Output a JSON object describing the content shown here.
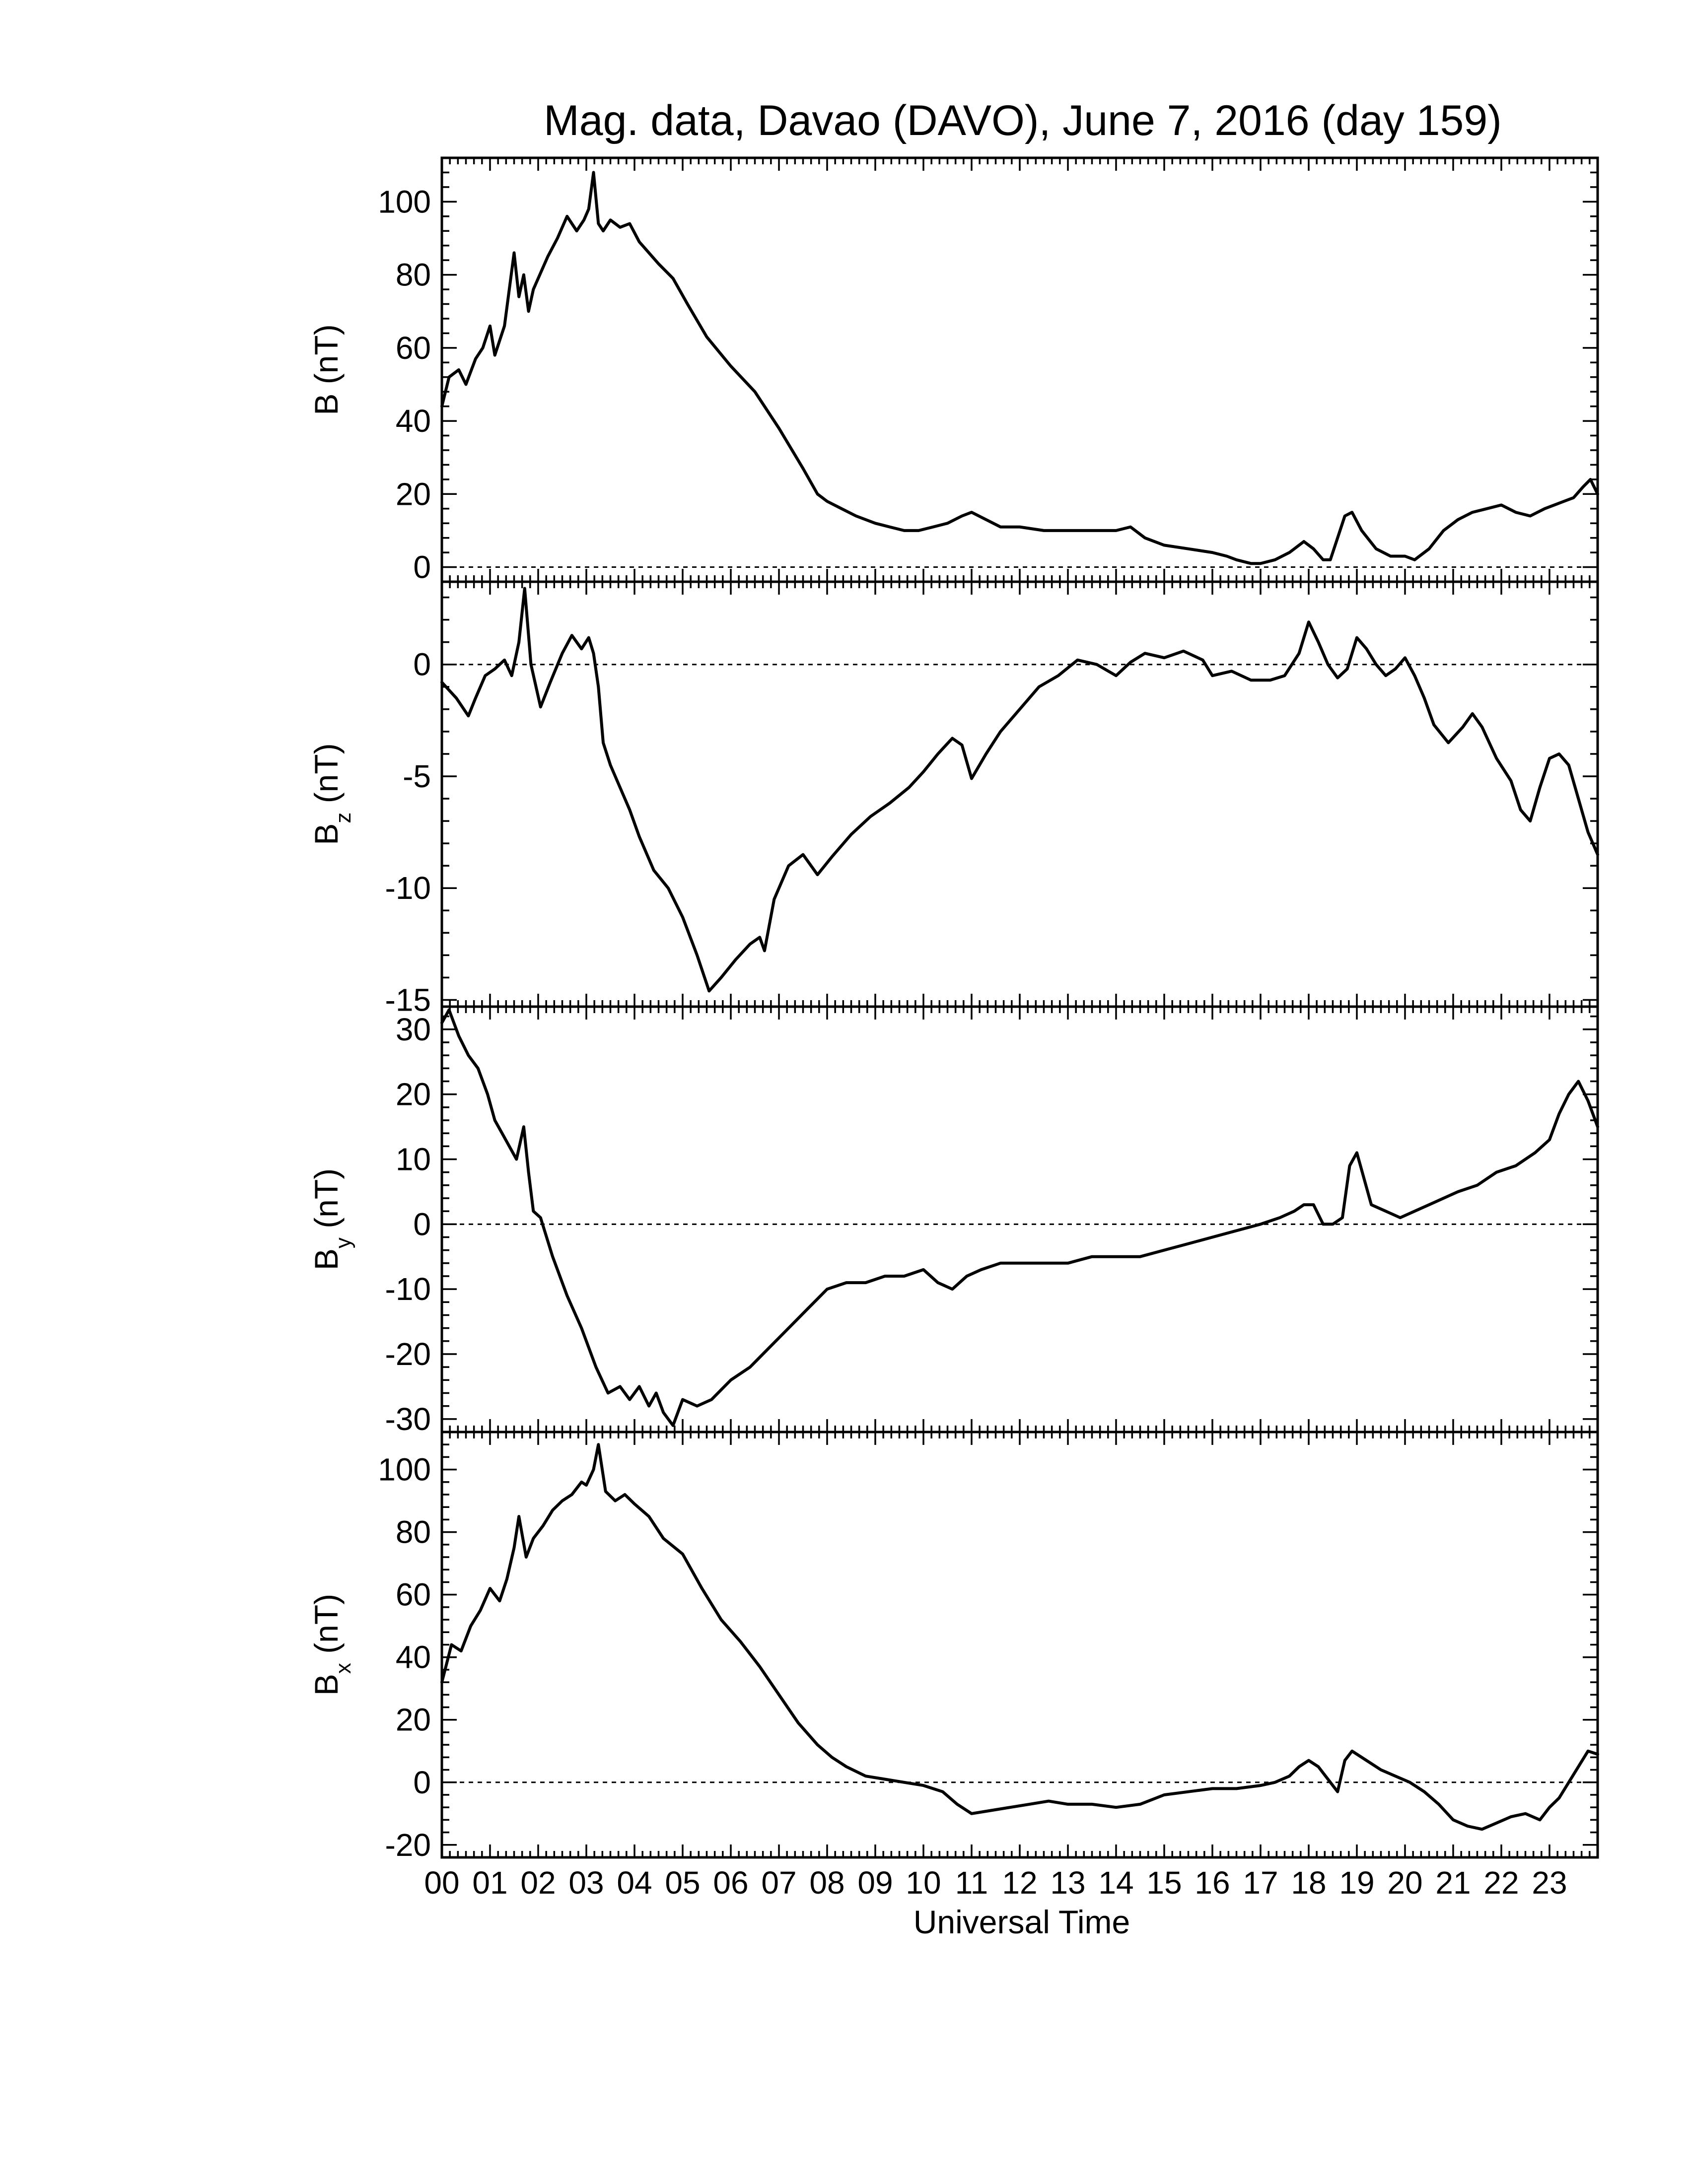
{
  "chart_data": {
    "type": "line",
    "title": "Mag. data, Davao (DAVO), June 7, 2016 (day 159)",
    "xlabel": "Universal Time",
    "x_unit": "hours UT",
    "xlim": [
      0,
      24
    ],
    "x_tick_labels": [
      "00",
      "01",
      "02",
      "03",
      "04",
      "05",
      "06",
      "07",
      "08",
      "09",
      "10",
      "11",
      "12",
      "13",
      "14",
      "15",
      "16",
      "17",
      "18",
      "19",
      "20",
      "21",
      "22",
      "23"
    ],
    "colors": {
      "line": "#000000",
      "frame": "#000000",
      "background": "#ffffff"
    },
    "panels": [
      {
        "id": "b-total",
        "ylabel_main": "B",
        "ylabel_sub": "",
        "ylabel_unit": "(nT)",
        "ylim": [
          -4,
          112
        ],
        "yticks": [
          0,
          20,
          40,
          60,
          80,
          100
        ],
        "ytick_labels": [
          "0",
          "20",
          "40",
          "60",
          "80",
          "100"
        ],
        "zero_line": true,
        "series": [
          {
            "x": [
              0,
              0.15,
              0.35,
              0.5,
              0.7,
              0.85,
              1.0,
              1.1,
              1.2,
              1.3,
              1.4,
              1.5,
              1.6,
              1.7,
              1.8,
              1.9,
              2.0,
              2.2,
              2.4,
              2.6,
              2.8,
              2.95,
              3.05,
              3.15,
              3.25,
              3.35,
              3.5,
              3.7,
              3.9,
              4.1,
              4.3,
              4.5,
              4.8,
              5.1,
              5.5,
              6.0,
              6.5,
              7.0,
              7.5,
              7.8,
              8.0,
              8.3,
              8.6,
              9.0,
              9.3,
              9.6,
              9.9,
              10.2,
              10.5,
              10.8,
              11.0,
              11.3,
              11.6,
              12.0,
              12.5,
              13.0,
              13.5,
              14.0,
              14.3,
              14.6,
              15.0,
              15.5,
              16.0,
              16.3,
              16.5,
              16.8,
              17.0,
              17.3,
              17.6,
              17.9,
              18.1,
              18.3,
              18.45,
              18.6,
              18.75,
              18.9,
              19.1,
              19.4,
              19.7,
              20.0,
              20.2,
              20.5,
              20.8,
              21.1,
              21.4,
              21.7,
              22.0,
              22.3,
              22.6,
              22.9,
              23.1,
              23.3,
              23.5,
              23.7,
              23.85,
              24.0
            ],
            "y": [
              44,
              52,
              54,
              50,
              57,
              60,
              66,
              58,
              62,
              66,
              76,
              86,
              74,
              80,
              70,
              76,
              79,
              85,
              90,
              96,
              92,
              95,
              98,
              108,
              94,
              92,
              95,
              93,
              94,
              89,
              86,
              83,
              79,
              72,
              63,
              55,
              48,
              38,
              27,
              20,
              18,
              16,
              14,
              12,
              11,
              10,
              10,
              11,
              12,
              14,
              15,
              13,
              11,
              11,
              10,
              10,
              10,
              10,
              11,
              8,
              6,
              5,
              4,
              3,
              2,
              1,
              1,
              2,
              4,
              7,
              5,
              2,
              2,
              8,
              14,
              15,
              10,
              5,
              3,
              3,
              2,
              5,
              10,
              13,
              15,
              16,
              17,
              15,
              14,
              16,
              17,
              18,
              19,
              22,
              24,
              20
            ]
          }
        ]
      },
      {
        "id": "bz",
        "ylabel_main": "B",
        "ylabel_sub": "z",
        "ylabel_unit": "(nT)",
        "ylim": [
          -15.3,
          3.7
        ],
        "yticks": [
          0,
          -5,
          -10,
          -15
        ],
        "ytick_labels": [
          "0",
          "-5",
          "-10",
          "-15"
        ],
        "zero_line": true,
        "series": [
          {
            "x": [
              0,
              0.3,
              0.55,
              0.7,
              0.9,
              1.1,
              1.3,
              1.45,
              1.6,
              1.72,
              1.85,
              2.05,
              2.25,
              2.5,
              2.7,
              2.9,
              3.05,
              3.15,
              3.25,
              3.35,
              3.5,
              3.7,
              3.9,
              4.1,
              4.4,
              4.7,
              5.0,
              5.3,
              5.55,
              5.8,
              6.1,
              6.4,
              6.6,
              6.7,
              6.9,
              7.2,
              7.5,
              7.8,
              8.1,
              8.5,
              8.9,
              9.3,
              9.7,
              10.0,
              10.3,
              10.6,
              10.8,
              11.0,
              11.3,
              11.6,
              12.0,
              12.4,
              12.8,
              13.2,
              13.6,
              14.0,
              14.3,
              14.6,
              15.0,
              15.4,
              15.8,
              16.0,
              16.4,
              16.8,
              17.2,
              17.5,
              17.8,
              18.0,
              18.2,
              18.4,
              18.6,
              18.8,
              19.0,
              19.2,
              19.4,
              19.6,
              19.8,
              20.0,
              20.2,
              20.4,
              20.6,
              20.9,
              21.2,
              21.4,
              21.6,
              21.9,
              22.2,
              22.4,
              22.6,
              22.8,
              23.0,
              23.2,
              23.4,
              23.6,
              23.8,
              24.0
            ],
            "y": [
              -0.8,
              -1.5,
              -2.3,
              -1.5,
              -0.5,
              -0.2,
              0.2,
              -0.5,
              1.0,
              3.4,
              0.0,
              -1.9,
              -0.8,
              0.5,
              1.3,
              0.7,
              1.2,
              0.5,
              -1.0,
              -3.5,
              -4.5,
              -5.5,
              -6.5,
              -7.7,
              -9.2,
              -10.0,
              -11.3,
              -13.0,
              -14.6,
              -14.0,
              -13.2,
              -12.5,
              -12.2,
              -12.8,
              -10.5,
              -9.0,
              -8.5,
              -9.4,
              -8.6,
              -7.6,
              -6.8,
              -6.2,
              -5.5,
              -4.8,
              -4.0,
              -3.3,
              -3.6,
              -5.1,
              -4.0,
              -3.0,
              -2.0,
              -1.0,
              -0.5,
              0.2,
              0.0,
              -0.5,
              0.1,
              0.5,
              0.3,
              0.6,
              0.2,
              -0.5,
              -0.3,
              -0.7,
              -0.7,
              -0.5,
              0.5,
              1.9,
              1.0,
              0.0,
              -0.6,
              -0.2,
              1.2,
              0.7,
              0.0,
              -0.5,
              -0.2,
              0.3,
              -0.5,
              -1.5,
              -2.7,
              -3.5,
              -2.8,
              -2.2,
              -2.8,
              -4.2,
              -5.2,
              -6.5,
              -7.0,
              -5.5,
              -4.2,
              -4.0,
              -4.5,
              -6.0,
              -7.5,
              -8.5
            ]
          }
        ]
      },
      {
        "id": "by",
        "ylabel_main": "B",
        "ylabel_sub": "y",
        "ylabel_unit": "(nT)",
        "ylim": [
          -32,
          33.5
        ],
        "yticks": [
          30,
          20,
          10,
          0,
          -10,
          -20,
          -30
        ],
        "ytick_labels": [
          "30",
          "20",
          "10",
          "0",
          "-10",
          "-20",
          "-30"
        ],
        "zero_line": true,
        "series": [
          {
            "x": [
              0,
              0.15,
              0.35,
              0.55,
              0.75,
              0.95,
              1.1,
              1.25,
              1.4,
              1.55,
              1.7,
              1.8,
              1.9,
              2.05,
              2.3,
              2.6,
              2.9,
              3.2,
              3.45,
              3.7,
              3.9,
              4.1,
              4.3,
              4.45,
              4.6,
              4.8,
              5.0,
              5.3,
              5.6,
              6.0,
              6.4,
              6.8,
              7.2,
              7.6,
              8.0,
              8.4,
              8.8,
              9.2,
              9.6,
              10.0,
              10.3,
              10.6,
              10.9,
              11.2,
              11.6,
              12.0,
              12.5,
              13.0,
              13.5,
              14.0,
              14.5,
              15.0,
              15.5,
              16.0,
              16.5,
              17.0,
              17.4,
              17.7,
              17.9,
              18.1,
              18.3,
              18.5,
              18.7,
              18.85,
              19.0,
              19.3,
              19.6,
              19.9,
              20.2,
              20.5,
              20.8,
              21.1,
              21.5,
              21.9,
              22.3,
              22.7,
              23.0,
              23.2,
              23.4,
              23.6,
              23.8,
              24.0
            ],
            "y": [
              31,
              33,
              29,
              26,
              24,
              20,
              16,
              14,
              12,
              10,
              15,
              8,
              2,
              1,
              -5,
              -11,
              -16,
              -22,
              -26,
              -25,
              -27,
              -25,
              -28,
              -26,
              -29,
              -31,
              -27,
              -28,
              -27,
              -24,
              -22,
              -19,
              -16,
              -13,
              -10,
              -9,
              -9,
              -8,
              -8,
              -7,
              -9,
              -10,
              -8,
              -7,
              -6,
              -6,
              -6,
              -6,
              -5,
              -5,
              -5,
              -4,
              -3,
              -2,
              -1,
              0,
              1,
              2,
              3,
              3,
              0,
              0,
              1,
              9,
              11,
              3,
              2,
              1,
              2,
              3,
              4,
              5,
              6,
              8,
              9,
              11,
              13,
              17,
              20,
              22,
              19,
              15
            ]
          }
        ]
      },
      {
        "id": "bx",
        "ylabel_main": "B",
        "ylabel_sub": "x",
        "ylabel_unit": "(nT)",
        "ylim": [
          -24,
          112
        ],
        "yticks": [
          100,
          80,
          60,
          40,
          20,
          0,
          -20
        ],
        "ytick_labels": [
          "100",
          "80",
          "60",
          "40",
          "20",
          "0",
          "-20"
        ],
        "zero_line": true,
        "series": [
          {
            "x": [
              0,
              0.2,
              0.4,
              0.6,
              0.8,
              1.0,
              1.2,
              1.35,
              1.5,
              1.6,
              1.75,
              1.9,
              2.1,
              2.3,
              2.5,
              2.7,
              2.9,
              3.0,
              3.15,
              3.25,
              3.4,
              3.6,
              3.8,
              4.0,
              4.3,
              4.6,
              5.0,
              5.4,
              5.8,
              6.2,
              6.6,
              7.0,
              7.4,
              7.8,
              8.1,
              8.4,
              8.8,
              9.2,
              9.6,
              10.0,
              10.4,
              10.7,
              11.0,
              11.4,
              11.8,
              12.2,
              12.6,
              13.0,
              13.5,
              14.0,
              14.5,
              15.0,
              15.5,
              16.0,
              16.5,
              17.0,
              17.3,
              17.6,
              17.8,
              18.0,
              18.2,
              18.4,
              18.6,
              18.75,
              18.9,
              19.2,
              19.5,
              19.8,
              20.1,
              20.4,
              20.7,
              21.0,
              21.3,
              21.6,
              21.9,
              22.2,
              22.5,
              22.8,
              23.0,
              23.2,
              23.4,
              23.6,
              23.8,
              24.0
            ],
            "y": [
              32,
              44,
              42,
              50,
              55,
              62,
              58,
              65,
              75,
              85,
              72,
              78,
              82,
              87,
              90,
              92,
              96,
              95,
              100,
              108,
              93,
              90,
              92,
              89,
              85,
              78,
              73,
              62,
              52,
              45,
              37,
              28,
              19,
              12,
              8,
              5,
              2,
              1,
              0,
              -1,
              -3,
              -7,
              -10,
              -9,
              -8,
              -7,
              -6,
              -7,
              -7,
              -8,
              -7,
              -4,
              -3,
              -2,
              -2,
              -1,
              0,
              2,
              5,
              7,
              5,
              1,
              -3,
              7,
              10,
              7,
              4,
              2,
              0,
              -3,
              -7,
              -12,
              -14,
              -15,
              -13,
              -11,
              -10,
              -12,
              -8,
              -5,
              0,
              5,
              10,
              9
            ]
          }
        ]
      }
    ]
  }
}
